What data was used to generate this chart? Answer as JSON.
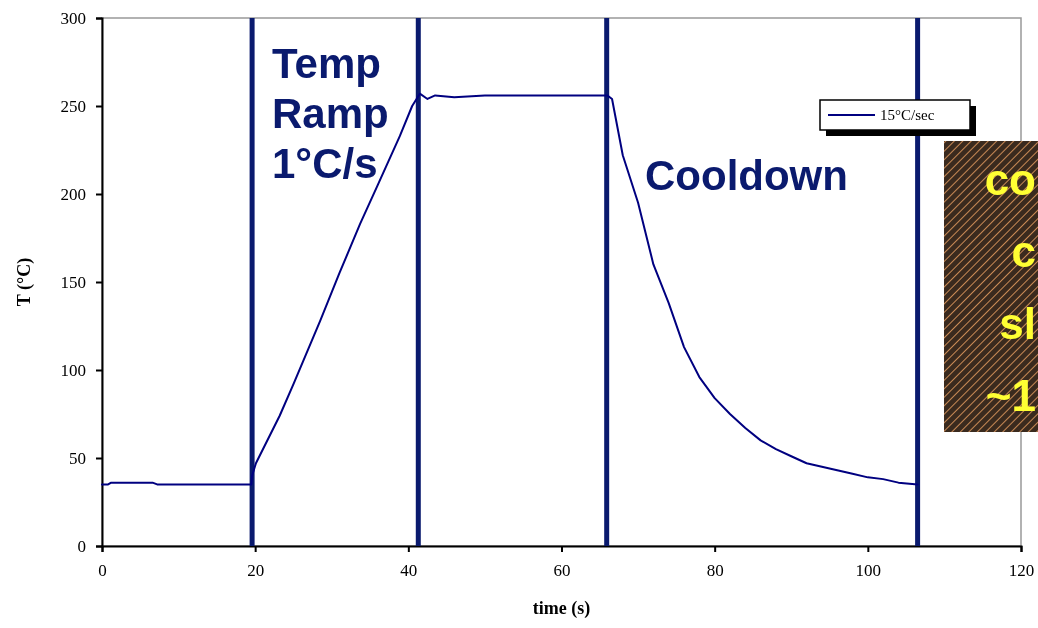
{
  "chart_data": {
    "type": "line",
    "xlabel": "time (s)",
    "ylabel": "T (°C)",
    "xlim": [
      0,
      120
    ],
    "xticks": [
      0,
      20,
      40,
      60,
      80,
      100,
      120
    ],
    "ylim": [
      0,
      300
    ],
    "yticks": [
      0,
      50,
      100,
      150,
      200,
      250,
      300
    ],
    "grid": false,
    "legend": "top right",
    "marker": "none",
    "line_style": "solid",
    "series": [
      {
        "name": "15°C/sec",
        "color": "#000080",
        "x": [
          0,
          0.8,
          1.2,
          6.2,
          6.6,
          7.2,
          19.5,
          19.6,
          20.1,
          23.2,
          25,
          28.5,
          31,
          33.7,
          36,
          38.9,
          40.5,
          41.5,
          42.5,
          43.5,
          46,
          50,
          55,
          60,
          66,
          66.6,
          68,
          70,
          72,
          74,
          76,
          78,
          80,
          82,
          84,
          86,
          88,
          90,
          92,
          94,
          96,
          98,
          100,
          102,
          104,
          106.5
        ],
        "values": [
          35,
          35,
          36,
          36,
          36,
          35,
          35,
          40,
          47,
          74,
          92,
          128,
          155,
          183,
          205,
          233,
          250,
          257,
          254,
          256,
          255,
          256,
          256,
          256,
          256,
          254,
          222,
          195,
          160,
          138,
          113,
          96,
          84,
          75,
          67,
          60,
          55,
          51,
          47,
          45,
          43,
          41,
          39,
          38,
          36,
          35
        ]
      }
    ],
    "ref_lines": [
      {
        "axis": "x",
        "value": 19.6,
        "color": "#0a1a6e"
      },
      {
        "axis": "x",
        "value": 41.3,
        "color": "#0a1a6e"
      },
      {
        "axis": "x",
        "value": 65.9,
        "color": "#0a1a6e"
      },
      {
        "axis": "x",
        "value": 106.5,
        "color": "#0a1a6e"
      }
    ],
    "annotations": [
      "Temp Ramp 1°C/s",
      "Cooldown",
      "co c sl ~1"
    ]
  }
}
